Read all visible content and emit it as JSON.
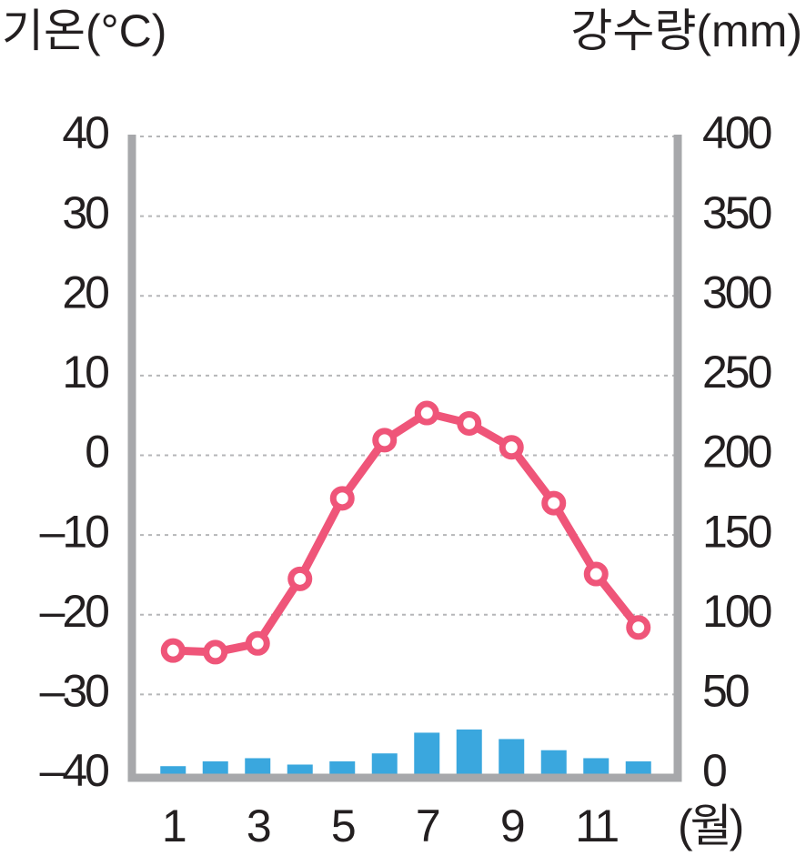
{
  "chart_data": {
    "type": "combo",
    "y_label": "기온(°C)",
    "y2_label": "강수량(mm)",
    "x_label": "(월)",
    "categories": [
      "1",
      null,
      "3",
      null,
      "5",
      null,
      "7",
      null,
      "9",
      null,
      "11",
      null
    ],
    "series": [
      {
        "type": "bar",
        "axis": "y2",
        "color": "#3aa7de",
        "values": [
          5,
          8,
          10,
          6,
          8,
          13,
          26,
          28,
          22,
          15,
          10,
          8
        ]
      },
      {
        "type": "line",
        "axis": "y",
        "color": "#ef5579",
        "values": [
          -24.5,
          -24.7,
          -23.6,
          -15.5,
          -5.4,
          1.9,
          5.3,
          4.0,
          1.0,
          -6.0,
          -14.9,
          -21.6
        ]
      }
    ],
    "ylim": [
      -40,
      40
    ],
    "yticks": [
      {
        "value": -40,
        "label": "–40"
      },
      {
        "value": -30,
        "label": "–30"
      },
      {
        "value": -20,
        "label": "–20"
      },
      {
        "value": -10,
        "label": "–10"
      },
      0,
      10,
      20,
      30,
      40
    ],
    "y2lim": [
      0,
      400
    ],
    "y2ticks": [
      0,
      50,
      100,
      150,
      200,
      250,
      300,
      350,
      400
    ],
    "grid": true
  }
}
